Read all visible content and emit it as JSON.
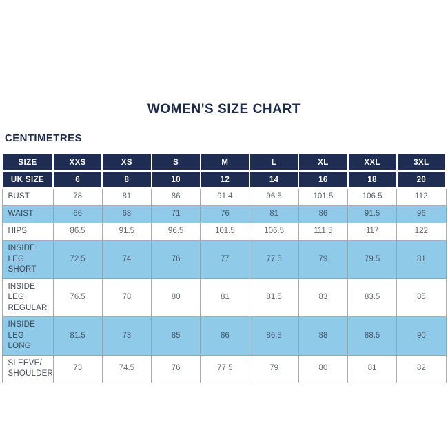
{
  "page": {
    "title": "WOMEN'S SIZE CHART",
    "units_label": "CENTIMETRES"
  },
  "colors": {
    "navy_header": "#1f2d52",
    "light_blue_row": "#90cae9",
    "title_text": "#1c2b4e",
    "cell_border": "#aaadb2"
  },
  "size_table": {
    "header_rows": [
      {
        "label": "SIZE",
        "values": [
          "XXS",
          "XS",
          "S",
          "M",
          "L",
          "XL",
          "XXL",
          "3XL"
        ]
      },
      {
        "label": "UK SIZE",
        "values": [
          "6",
          "8",
          "10",
          "12",
          "14",
          "16",
          "18",
          "20"
        ]
      }
    ],
    "rows": [
      {
        "label_lines": [
          "BUST"
        ],
        "highlight": false,
        "values": [
          "78",
          "81",
          "86",
          "91.4",
          "96.5",
          "101.5",
          "106.5",
          "112"
        ]
      },
      {
        "label_lines": [
          "WAIST"
        ],
        "highlight": true,
        "values": [
          "66",
          "68",
          "71",
          "76",
          "81",
          "86",
          "91.5",
          "96"
        ]
      },
      {
        "label_lines": [
          "HIPS"
        ],
        "highlight": false,
        "values": [
          "86.5",
          "91.5",
          "96.5",
          "101.5",
          "106.5",
          "111.5",
          "117",
          "122"
        ]
      },
      {
        "label_lines": [
          "INSIDE LEG",
          "SHORT"
        ],
        "highlight": true,
        "values": [
          "72.5",
          "74",
          "76",
          "77",
          "77.5",
          "79",
          "79.5",
          "81"
        ]
      },
      {
        "label_lines": [
          "INSIDE LEG",
          "REGULAR"
        ],
        "highlight": false,
        "values": [
          "76.5",
          "78",
          "80",
          "81",
          "81.5",
          "83",
          "83.5",
          "85"
        ]
      },
      {
        "label_lines": [
          "INSIDE LEG",
          "LONG"
        ],
        "highlight": true,
        "values": [
          "81.5",
          "73",
          "85",
          "86",
          "86.5",
          "88",
          "88.5",
          "90"
        ]
      },
      {
        "label_lines": [
          "SLEEVE/",
          "SHOULDER"
        ],
        "highlight": false,
        "values": [
          "73",
          "74.5",
          "76",
          "77.5",
          "79",
          "80",
          "81",
          "82"
        ]
      }
    ]
  }
}
